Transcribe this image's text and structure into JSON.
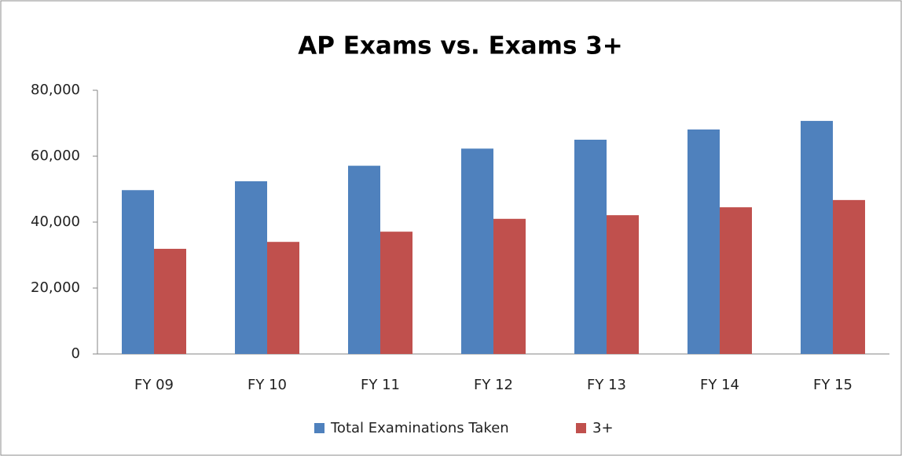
{
  "chart_data": {
    "type": "bar",
    "title": "AP Exams vs. Exams 3+",
    "categories": [
      "FY 09",
      "FY 10",
      "FY 11",
      "FY 12",
      "FY 13",
      "FY 14",
      "FY 15"
    ],
    "series": [
      {
        "name": "Total Examinations Taken",
        "color": "#4f81bd",
        "values": [
          49700,
          52400,
          57100,
          62300,
          65000,
          68100,
          70700
        ]
      },
      {
        "name": "3+",
        "color": "#c0504d",
        "values": [
          31900,
          34000,
          37100,
          41000,
          42100,
          44500,
          46700
        ]
      }
    ],
    "ylim": [
      0,
      80000
    ],
    "yticks": [
      0,
      {
        "value": 20000,
        "label": "20,000"
      },
      {
        "value": 40000,
        "label": "40,000"
      },
      {
        "value": 60000,
        "label": "60,000"
      },
      {
        "value": 80000,
        "label": "80,000"
      }
    ],
    "grid": false,
    "legend": "bottom"
  }
}
